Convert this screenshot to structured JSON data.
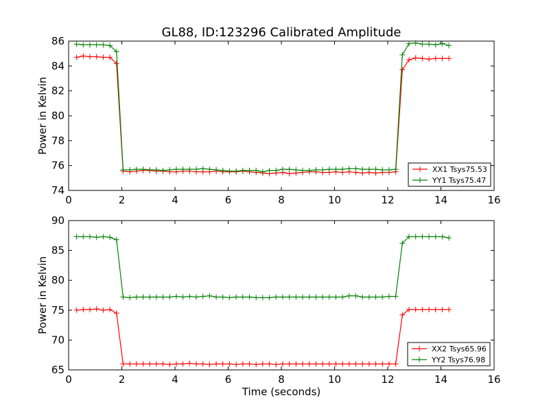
{
  "title": "GL88, ID:123296 Calibrated Amplitude",
  "colors": {
    "red": "#ff0000",
    "green": "#008000"
  },
  "chart_data": [
    {
      "type": "line",
      "title": "GL88, ID:123296 Calibrated Amplitude",
      "xlabel": "",
      "ylabel": "Power in Kelvin",
      "xlim": [
        0,
        16
      ],
      "ylim": [
        74,
        86
      ],
      "xticks": [
        0,
        2,
        4,
        6,
        8,
        10,
        12,
        14,
        16
      ],
      "yticks": [
        74,
        76,
        78,
        80,
        82,
        84,
        86
      ],
      "grid": false,
      "legend_position": "lower-right",
      "marker": "+",
      "x": [
        0.3,
        0.55,
        0.8,
        1.05,
        1.3,
        1.55,
        1.8,
        2.05,
        2.3,
        2.55,
        2.8,
        3.05,
        3.3,
        3.55,
        3.8,
        4.05,
        4.3,
        4.55,
        4.8,
        5.05,
        5.3,
        5.55,
        5.8,
        6.05,
        6.3,
        6.55,
        6.8,
        7.05,
        7.3,
        7.55,
        7.8,
        8.05,
        8.3,
        8.55,
        8.8,
        9.05,
        9.3,
        9.55,
        9.8,
        10.05,
        10.3,
        10.55,
        10.8,
        11.05,
        11.3,
        11.55,
        11.8,
        12.05,
        12.3,
        12.55,
        12.8,
        13.05,
        13.3,
        13.55,
        13.8,
        14.05,
        14.3
      ],
      "series": [
        {
          "name": "XX1 Tsys75.53",
          "color": "#ff0000",
          "values": [
            84.7,
            84.8,
            84.75,
            84.75,
            84.7,
            84.7,
            84.2,
            75.55,
            75.5,
            75.55,
            75.6,
            75.6,
            75.55,
            75.55,
            75.5,
            75.5,
            75.55,
            75.55,
            75.5,
            75.5,
            75.5,
            75.55,
            75.5,
            75.5,
            75.5,
            75.55,
            75.5,
            75.45,
            75.4,
            75.35,
            75.4,
            75.45,
            75.35,
            75.4,
            75.45,
            75.5,
            75.5,
            75.45,
            75.45,
            75.5,
            75.45,
            75.5,
            75.45,
            75.4,
            75.45,
            75.4,
            75.45,
            75.45,
            75.5,
            83.7,
            84.5,
            84.65,
            84.6,
            84.55,
            84.6,
            84.6,
            84.6
          ]
        },
        {
          "name": "YY1 Tsys75.47",
          "color": "#008000",
          "values": [
            85.75,
            85.7,
            85.7,
            85.7,
            85.7,
            85.65,
            85.15,
            75.65,
            75.65,
            75.7,
            75.7,
            75.65,
            75.65,
            75.6,
            75.65,
            75.7,
            75.7,
            75.7,
            75.7,
            75.75,
            75.7,
            75.65,
            75.6,
            75.55,
            75.55,
            75.6,
            75.6,
            75.6,
            75.5,
            75.6,
            75.6,
            75.7,
            75.7,
            75.65,
            75.6,
            75.6,
            75.65,
            75.65,
            75.7,
            75.7,
            75.7,
            75.75,
            75.75,
            75.7,
            75.7,
            75.7,
            75.65,
            75.65,
            75.7,
            84.9,
            85.8,
            85.85,
            85.75,
            85.75,
            85.7,
            85.8,
            85.65
          ]
        }
      ]
    },
    {
      "type": "line",
      "title": "",
      "xlabel": "Time (seconds)",
      "ylabel": "Power in Kelvin",
      "xlim": [
        0,
        16
      ],
      "ylim": [
        65,
        90
      ],
      "xticks": [
        0,
        2,
        4,
        6,
        8,
        10,
        12,
        14,
        16
      ],
      "yticks": [
        65,
        70,
        75,
        80,
        85,
        90
      ],
      "grid": false,
      "legend_position": "lower-right",
      "marker": "+",
      "x": [
        0.3,
        0.55,
        0.8,
        1.05,
        1.3,
        1.55,
        1.8,
        2.05,
        2.3,
        2.55,
        2.8,
        3.05,
        3.3,
        3.55,
        3.8,
        4.05,
        4.3,
        4.55,
        4.8,
        5.05,
        5.3,
        5.55,
        5.8,
        6.05,
        6.3,
        6.55,
        6.8,
        7.05,
        7.3,
        7.55,
        7.8,
        8.05,
        8.3,
        8.55,
        8.8,
        9.05,
        9.3,
        9.55,
        9.8,
        10.05,
        10.3,
        10.55,
        10.8,
        11.05,
        11.3,
        11.55,
        11.8,
        12.05,
        12.3,
        12.55,
        12.8,
        13.05,
        13.3,
        13.55,
        13.8,
        14.05,
        14.3
      ],
      "series": [
        {
          "name": "XX2 Tsys65.96",
          "color": "#ff0000",
          "values": [
            75.0,
            75.1,
            75.1,
            75.2,
            75.0,
            75.1,
            74.5,
            66.0,
            66.0,
            66.0,
            66.0,
            66.0,
            66.0,
            66.0,
            65.9,
            66.0,
            66.0,
            66.1,
            66.0,
            66.0,
            65.9,
            66.0,
            66.0,
            66.0,
            65.9,
            66.0,
            66.0,
            65.9,
            66.0,
            66.0,
            65.9,
            66.0,
            66.0,
            66.0,
            66.0,
            66.0,
            66.0,
            66.0,
            66.0,
            66.0,
            66.0,
            66.0,
            66.0,
            66.0,
            66.0,
            66.0,
            66.0,
            66.0,
            66.0,
            74.2,
            75.1,
            75.1,
            75.1,
            75.1,
            75.1,
            75.1,
            75.1
          ]
        },
        {
          "name": "YY2 Tsys76.98",
          "color": "#008000",
          "values": [
            87.3,
            87.3,
            87.3,
            87.2,
            87.3,
            87.2,
            86.8,
            77.2,
            77.1,
            77.2,
            77.2,
            77.2,
            77.2,
            77.2,
            77.2,
            77.3,
            77.2,
            77.3,
            77.2,
            77.3,
            77.4,
            77.2,
            77.2,
            77.1,
            77.2,
            77.2,
            77.2,
            77.1,
            77.1,
            77.1,
            77.2,
            77.2,
            77.2,
            77.2,
            77.2,
            77.2,
            77.2,
            77.2,
            77.2,
            77.2,
            77.2,
            77.4,
            77.4,
            77.2,
            77.2,
            77.2,
            77.2,
            77.3,
            77.3,
            86.2,
            87.3,
            87.3,
            87.3,
            87.3,
            87.3,
            87.3,
            87.1
          ]
        }
      ]
    }
  ]
}
